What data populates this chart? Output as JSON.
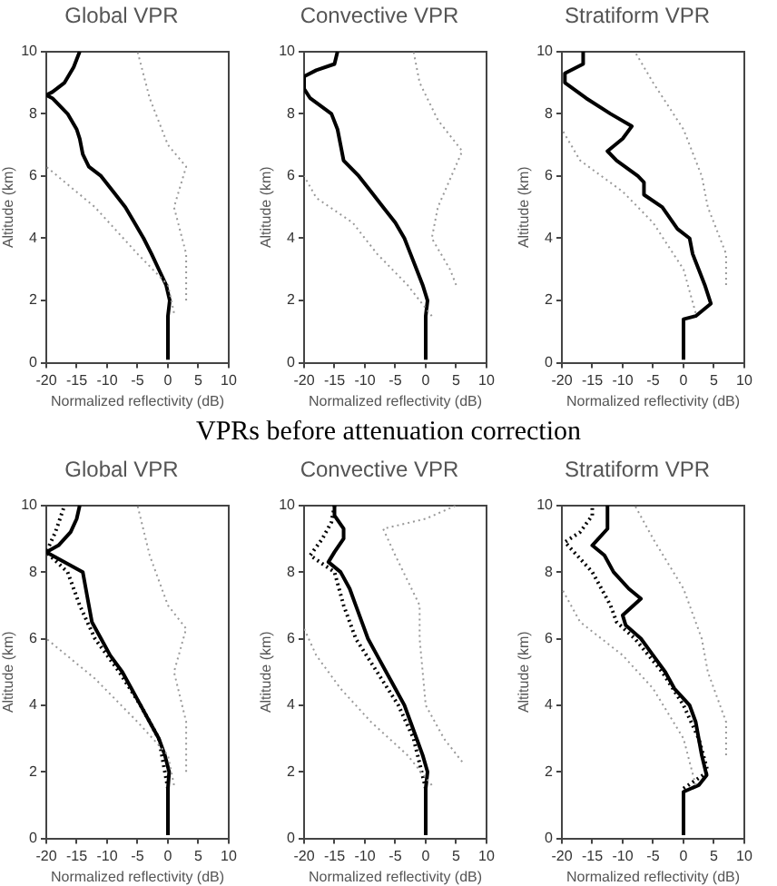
{
  "chart_data": [
    {
      "type": "line",
      "title": "Global VPR",
      "xlabel": "Normalized reflectivity (dB)",
      "ylabel": "Altitude (km)",
      "xlim": [
        -20,
        10
      ],
      "xticks": [
        -20,
        -15,
        -10,
        -5,
        0,
        5,
        10
      ],
      "ylim": [
        0,
        10
      ],
      "yticks": [
        0,
        2,
        4,
        6,
        8,
        10
      ],
      "grid": false,
      "legend": false,
      "marker": "none",
      "series": [
        {
          "color": "#999999",
          "line_style": "dotted",
          "x": [
            1,
            0,
            -5,
            -12,
            -20
          ],
          "values": [
            1.6,
            2.5,
            3.5,
            5,
            6.3
          ]
        },
        {
          "color": "#999999",
          "line_style": "dotted",
          "x": [
            3,
            3,
            1,
            3,
            0,
            -3,
            -5
          ],
          "values": [
            2,
            3.5,
            5,
            6.3,
            7,
            8.5,
            10
          ]
        },
        {
          "color": "#000000",
          "line_style": "solid",
          "x": [
            0,
            0,
            0.3,
            -0.3,
            -1.5,
            -2.7,
            -4,
            -5.5,
            -7,
            -9,
            -11,
            -13,
            -14,
            -14.5,
            -15,
            -16.5,
            -19,
            -20,
            -19,
            -17,
            -15.5,
            -14.5
          ],
          "values": [
            0.1,
            1.5,
            2,
            2.5,
            3,
            3.5,
            4,
            4.5,
            5,
            5.5,
            6,
            6.3,
            6.7,
            7.2,
            7.5,
            8,
            8.5,
            8.6,
            8.7,
            9,
            9.5,
            10
          ]
        }
      ]
    },
    {
      "type": "line",
      "title": "Convective VPR",
      "xlabel": "Normalized reflectivity (dB)",
      "ylabel": "Altitude (km)",
      "xlim": [
        -20,
        10
      ],
      "xticks": [
        -20,
        -15,
        -10,
        -5,
        0,
        5,
        10
      ],
      "ylim": [
        0,
        10
      ],
      "yticks": [
        0,
        2,
        4,
        6,
        8,
        10
      ],
      "grid": false,
      "legend": false,
      "marker": "none",
      "annotations": [
        "VPRs before attenuation correction"
      ],
      "series": [
        {
          "color": "#999999",
          "line_style": "dotted",
          "x": [
            1,
            -3,
            -8,
            -12,
            -18,
            -20
          ],
          "values": [
            1.5,
            2.5,
            3.5,
            4.5,
            5.3,
            6
          ]
        },
        {
          "color": "#999999",
          "line_style": "dotted",
          "x": [
            5,
            4,
            1,
            2,
            6,
            2,
            -1,
            -2
          ],
          "values": [
            2.5,
            3,
            4,
            5,
            6.8,
            7.8,
            9,
            10
          ]
        },
        {
          "color": "#000000",
          "line_style": "solid",
          "x": [
            0,
            0,
            0.3,
            -0.5,
            -1.5,
            -2.5,
            -3.5,
            -5,
            -7,
            -9,
            -11,
            -13.5,
            -14,
            -14.5,
            -15.5,
            -19,
            -20,
            -20,
            -18,
            -15,
            -14.5
          ],
          "values": [
            0.1,
            1.5,
            2,
            2.5,
            3,
            3.5,
            4,
            4.5,
            5,
            5.5,
            6,
            6.5,
            7,
            7.5,
            8,
            8.5,
            8.8,
            9.2,
            9.4,
            9.6,
            10
          ]
        }
      ]
    },
    {
      "type": "line",
      "title": "Stratiform VPR",
      "xlabel": "Normalized reflectivity (dB)",
      "ylabel": "Altitude (km)",
      "xlim": [
        -20,
        10
      ],
      "xticks": [
        -20,
        -15,
        -10,
        -5,
        0,
        5,
        10
      ],
      "ylim": [
        0,
        10
      ],
      "yticks": [
        0,
        2,
        4,
        6,
        8,
        10
      ],
      "grid": false,
      "legend": false,
      "marker": "none",
      "series": [
        {
          "color": "#999999",
          "line_style": "dotted",
          "x": [
            2,
            0,
            -5,
            -10,
            -17,
            -20
          ],
          "values": [
            1.6,
            3,
            4.5,
            5.5,
            6.5,
            7.5
          ]
        },
        {
          "color": "#999999",
          "line_style": "dotted",
          "x": [
            7,
            7,
            4,
            3,
            0,
            -5,
            -8
          ],
          "values": [
            2.5,
            3.5,
            5,
            6,
            7.5,
            9,
            10
          ]
        },
        {
          "color": "#000000",
          "line_style": "solid",
          "x": [
            0,
            0,
            2,
            4.5,
            3.5,
            2.5,
            1.5,
            1,
            -1,
            -3.5,
            -6.5,
            -6.5,
            -7.5,
            -11,
            -12.5,
            -10,
            -8.5,
            -12,
            -16,
            -19.5,
            -19.5,
            -16.5,
            -16.5
          ],
          "values": [
            0.1,
            1.4,
            1.5,
            1.9,
            2.5,
            3,
            3.5,
            4,
            4.3,
            5,
            5.4,
            5.8,
            6,
            6.5,
            6.8,
            7.2,
            7.6,
            8,
            8.5,
            9,
            9.3,
            9.6,
            10
          ]
        }
      ]
    },
    {
      "type": "line",
      "title": "Global VPR",
      "xlabel": "Normalized reflectivity (dB)",
      "ylabel": "Altitude (km)",
      "xlim": [
        -20,
        10
      ],
      "xticks": [
        -20,
        -15,
        -10,
        -5,
        0,
        5,
        10
      ],
      "ylim": [
        0,
        10
      ],
      "yticks": [
        0,
        2,
        4,
        6,
        8,
        10
      ],
      "grid": false,
      "legend": false,
      "marker": "none",
      "series": [
        {
          "color": "#999999",
          "line_style": "dotted",
          "x": [
            1,
            0,
            -5,
            -12,
            -20
          ],
          "values": [
            1.6,
            2.5,
            3.5,
            4.8,
            6
          ]
        },
        {
          "color": "#999999",
          "line_style": "dotted",
          "x": [
            3,
            3,
            1,
            3,
            0,
            -3,
            -5
          ],
          "values": [
            2,
            3.5,
            5,
            6.3,
            7,
            8.5,
            10
          ]
        },
        {
          "color": "#000000",
          "line_style": "dotted",
          "x": [
            0,
            -1.5,
            -4.5,
            -8,
            -12,
            -14.5,
            -16.5,
            -20,
            -18.5,
            -17
          ],
          "values": [
            1.5,
            3,
            4,
            5,
            6,
            7,
            8,
            8.6,
            9.2,
            10
          ]
        },
        {
          "color": "#000000",
          "line_style": "solid",
          "x": [
            0,
            0,
            0.2,
            -0.5,
            -1.5,
            -3,
            -4.5,
            -6,
            -7.5,
            -9.5,
            -11,
            -12.5,
            -13,
            -13.5,
            -14,
            -17,
            -20,
            -18,
            -16,
            -15,
            -14.5
          ],
          "values": [
            0.1,
            1.5,
            2,
            2.5,
            3,
            3.5,
            4,
            4.5,
            5,
            5.5,
            6,
            6.5,
            7,
            7.5,
            8,
            8.3,
            8.6,
            8.8,
            9.2,
            9.6,
            10
          ]
        }
      ]
    },
    {
      "type": "line",
      "title": "Convective VPR",
      "xlabel": "Normalized reflectivity (dB)",
      "ylabel": "Altitude (km)",
      "xlim": [
        -20,
        10
      ],
      "xticks": [
        -20,
        -15,
        -10,
        -5,
        0,
        5,
        10
      ],
      "ylim": [
        0,
        10
      ],
      "yticks": [
        0,
        2,
        4,
        6,
        8,
        10
      ],
      "grid": false,
      "legend": false,
      "marker": "none",
      "series": [
        {
          "color": "#999999",
          "line_style": "dotted",
          "x": [
            1,
            -3,
            -9,
            -14,
            -18,
            -20
          ],
          "values": [
            1.6,
            2.5,
            3.5,
            4.5,
            5.5,
            6.3
          ]
        },
        {
          "color": "#999999",
          "line_style": "dotted",
          "x": [
            6,
            3,
            0,
            -1,
            -1,
            -5,
            -7,
            0,
            5
          ],
          "values": [
            2.3,
            3,
            4,
            6,
            7,
            8.5,
            9.3,
            9.6,
            10
          ]
        },
        {
          "color": "#000000",
          "line_style": "dotted",
          "x": [
            0,
            -2,
            -4.5,
            -8,
            -11.5,
            -13.5,
            -15,
            -19,
            -17,
            -15.5,
            -15
          ],
          "values": [
            1.5,
            3,
            4,
            5,
            6,
            7,
            8,
            8.5,
            9,
            9.5,
            10
          ]
        },
        {
          "color": "#000000",
          "line_style": "solid",
          "x": [
            0,
            0,
            0.3,
            -0.5,
            -1.5,
            -2.5,
            -3.5,
            -5,
            -6.5,
            -8,
            -9.5,
            -10.5,
            -11.5,
            -12.5,
            -14,
            -16,
            -15,
            -13.5,
            -13.5,
            -15,
            -15
          ],
          "values": [
            0.1,
            1.5,
            2,
            2.5,
            3,
            3.5,
            4,
            4.5,
            5,
            5.5,
            6,
            6.5,
            7,
            7.5,
            8,
            8.3,
            8.6,
            9,
            9.3,
            9.7,
            10
          ]
        }
      ]
    },
    {
      "type": "line",
      "title": "Stratiform VPR",
      "xlabel": "Normalized reflectivity (dB)",
      "ylabel": "Altitude (km)",
      "xlim": [
        -20,
        10
      ],
      "xticks": [
        -20,
        -15,
        -10,
        -5,
        0,
        5,
        10
      ],
      "ylim": [
        0,
        10
      ],
      "yticks": [
        0,
        2,
        4,
        6,
        8,
        10
      ],
      "grid": false,
      "legend": false,
      "marker": "none",
      "series": [
        {
          "color": "#999999",
          "line_style": "dotted",
          "x": [
            2,
            0,
            -5,
            -10,
            -17,
            -20
          ],
          "values": [
            1.6,
            3,
            4.5,
            5.5,
            6.5,
            7.5
          ]
        },
        {
          "color": "#999999",
          "line_style": "dotted",
          "x": [
            7,
            7,
            4,
            3,
            0,
            -5,
            -8
          ],
          "values": [
            2.5,
            3.5,
            5,
            6,
            7.5,
            9,
            10
          ]
        },
        {
          "color": "#000000",
          "line_style": "dotted",
          "x": [
            0,
            4,
            2.5,
            0,
            -3.5,
            -8,
            -11,
            -12,
            -15,
            -17.5,
            -19.5,
            -17,
            -15,
            -15
          ],
          "values": [
            1.5,
            2,
            3,
            4,
            5,
            6,
            6.5,
            7,
            8,
            8.5,
            8.9,
            9.2,
            9.7,
            10
          ]
        },
        {
          "color": "#000000",
          "line_style": "solid",
          "x": [
            0,
            0,
            2.5,
            3.8,
            3,
            2.5,
            2,
            1,
            -1.5,
            -3,
            -5,
            -7,
            -9.5,
            -10,
            -7,
            -9,
            -11.5,
            -13,
            -15,
            -12.5,
            -12.5
          ],
          "values": [
            0.1,
            1.4,
            1.6,
            1.9,
            2.5,
            3,
            3.5,
            4,
            4.5,
            5,
            5.5,
            6,
            6.4,
            6.7,
            7.2,
            7.5,
            8,
            8.5,
            8.8,
            9.3,
            10
          ]
        }
      ]
    }
  ]
}
